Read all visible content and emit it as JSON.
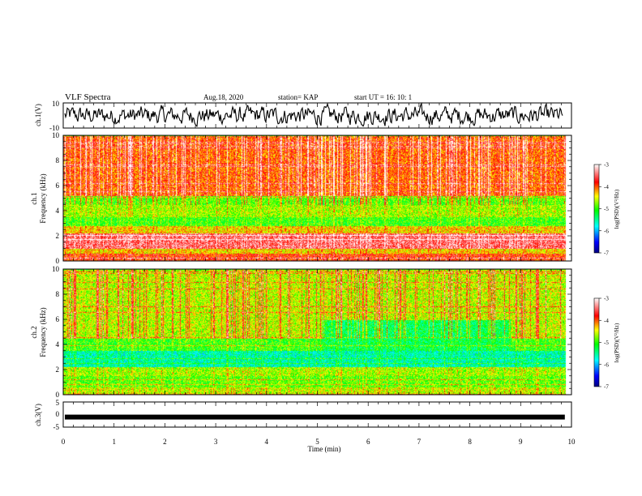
{
  "header": {
    "title": "VLF Spectra",
    "date": "Aug.18, 2020",
    "station": "station= KAP",
    "start": "start  UT =   16: 10: 1"
  },
  "chart_data": [
    {
      "type": "line",
      "panel": "ch1-waveform",
      "ylabel": "ch.1(V)",
      "ylim": [
        -10,
        10
      ],
      "yticks": [
        "10",
        "-10"
      ],
      "xlim": [
        0,
        10
      ],
      "xmax_data": 9.83,
      "color": "#000000"
    },
    {
      "type": "heatmap",
      "panel": "ch1-spectrogram",
      "ylabel": "Frequency (kHz)",
      "ylabel2": "ch.1",
      "ylim": [
        0,
        10
      ],
      "yticks": [
        "0",
        "2",
        "4",
        "6",
        "8",
        "10"
      ],
      "xlim": [
        0,
        10
      ],
      "colorbar": {
        "label": "log(PSD)(V²/Hz)",
        "ticks": [
          "-3",
          "-4",
          "-5",
          "-6",
          "-7"
        ],
        "range": [
          -7,
          -3
        ]
      },
      "bands": [
        {
          "kHz": [
            0,
            0.6
          ],
          "level": -3.9
        },
        {
          "kHz": [
            0.6,
            1.0
          ],
          "level": -4.4
        },
        {
          "kHz": [
            1.0,
            2.2
          ],
          "level": -3.5
        },
        {
          "kHz": [
            2.2,
            2.8
          ],
          "level": -4.4
        },
        {
          "kHz": [
            2.8,
            3.5
          ],
          "level": -5.0
        },
        {
          "kHz": [
            3.5,
            4.5
          ],
          "level": -4.7
        },
        {
          "kHz": [
            4.5,
            5.2
          ],
          "level": -4.9
        },
        {
          "kHz": [
            5.2,
            10
          ],
          "level": -4.0
        }
      ],
      "intervals": []
    },
    {
      "type": "heatmap",
      "panel": "ch2-spectrogram",
      "ylabel": "Frequency (kHz)",
      "ylabel2": "ch.2",
      "ylim": [
        0,
        10
      ],
      "yticks": [
        "0",
        "2",
        "4",
        "6",
        "8",
        "10"
      ],
      "xlim": [
        0,
        10
      ],
      "colorbar": {
        "label": "log(PSD)(V²/Hz)",
        "ticks": [
          "-3",
          "-4",
          "-5",
          "-6",
          "-7"
        ],
        "range": [
          -7,
          -3
        ]
      },
      "bands": [
        {
          "kHz": [
            0,
            0.6
          ],
          "level": -4.6
        },
        {
          "kHz": [
            0.6,
            1.5
          ],
          "level": -4.9
        },
        {
          "kHz": [
            1.5,
            2.2
          ],
          "level": -4.7
        },
        {
          "kHz": [
            2.2,
            3.5
          ],
          "level": -5.6
        },
        {
          "kHz": [
            3.5,
            4.5
          ],
          "level": -5.0
        },
        {
          "kHz": [
            4.5,
            10
          ],
          "level": -4.6
        }
      ],
      "intervals": [
        {
          "min": [
            5.1,
            8.8
          ],
          "kHz": [
            3.5,
            6.0
          ],
          "level": -5.3
        }
      ]
    },
    {
      "type": "line",
      "panel": "ch3-waveform",
      "ylabel": "ch.3(V)",
      "ylim": [
        -5,
        5
      ],
      "yticks": [
        "5",
        "0",
        "-5"
      ],
      "xlim": [
        0,
        10
      ],
      "level": -1,
      "xlabel": "Time (min)",
      "xticks": [
        "0",
        "1",
        "2",
        "3",
        "4",
        "5",
        "6",
        "7",
        "8",
        "9",
        "10"
      ],
      "color": "#000000"
    }
  ]
}
